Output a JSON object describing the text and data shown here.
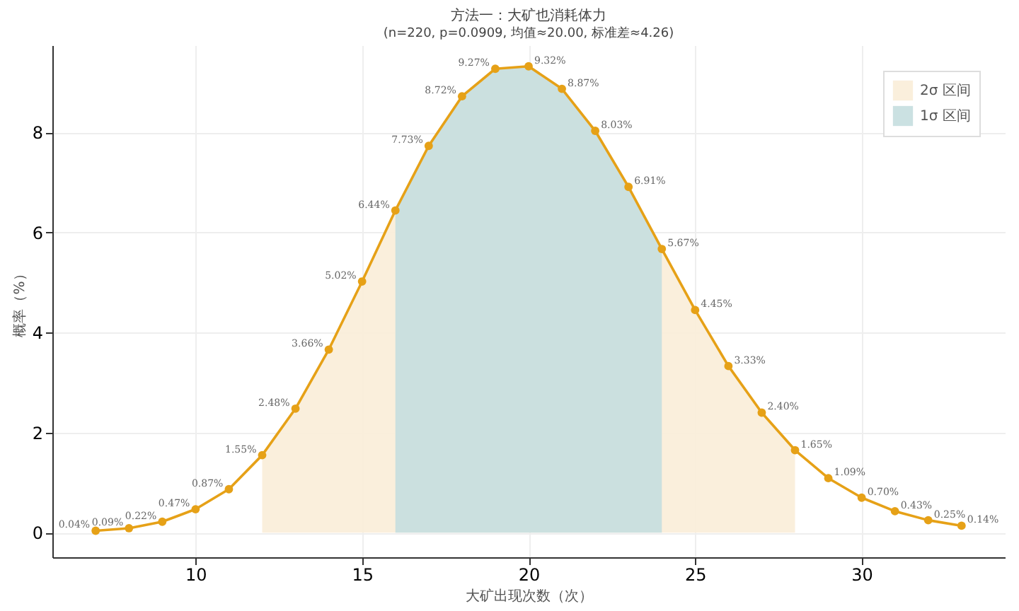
{
  "chart_data": {
    "type": "line",
    "title": "方法一：大矿也消耗体力",
    "subtitle": "(n=220, p=0.0909, 均值≈20.00, 标准差≈4.26)",
    "xlabel": "大矿出现次数（次）",
    "ylabel": "概率（%）",
    "series": [
      {
        "type": "area",
        "name": "2σ 区间",
        "color": "#f9edd8",
        "x": [
          12,
          13,
          14,
          15,
          16,
          17,
          18,
          19,
          20,
          21,
          22,
          23,
          24,
          25,
          26,
          27,
          28
        ],
        "values": [
          1.55,
          2.48,
          3.66,
          5.02,
          6.44,
          7.73,
          8.72,
          9.27,
          9.32,
          8.87,
          8.03,
          6.91,
          5.67,
          4.45,
          3.33,
          2.4,
          1.65
        ]
      },
      {
        "type": "area",
        "name": "1σ 区间",
        "color": "#c5dedf",
        "x": [
          16,
          17,
          18,
          19,
          20,
          21,
          22,
          23,
          24
        ],
        "values": [
          6.44,
          7.73,
          8.72,
          9.27,
          9.32,
          8.87,
          8.03,
          6.91,
          5.67
        ]
      },
      {
        "color": "#e6a117",
        "marker": "circle",
        "x": [
          7,
          8,
          9,
          10,
          11,
          12,
          13,
          14,
          15,
          16,
          17,
          18,
          19,
          20,
          21,
          22,
          23,
          24,
          25,
          26,
          27,
          28,
          29,
          30,
          31,
          32,
          33
        ],
        "values": [
          0.04,
          0.09,
          0.22,
          0.47,
          0.87,
          1.55,
          2.48,
          3.66,
          5.02,
          6.44,
          7.73,
          8.72,
          9.27,
          9.32,
          8.87,
          8.03,
          6.91,
          5.67,
          4.45,
          3.33,
          2.4,
          1.65,
          1.09,
          0.7,
          0.43,
          0.25,
          0.14
        ],
        "value_labels": [
          "0.04%",
          "0.09%",
          "0.22%",
          "0.47%",
          "0.87%",
          "1.55%",
          "2.48%",
          "3.66%",
          "5.02%",
          "6.44%",
          "7.73%",
          "8.72%",
          "9.27%",
          "9.32%",
          "8.87%",
          "8.03%",
          "6.91%",
          "5.67%",
          "4.45%",
          "3.33%",
          "2.40%",
          "1.65%",
          "1.09%",
          "0.70%",
          "0.43%",
          "0.25%",
          "0.14%"
        ]
      }
    ],
    "xlim": [
      5.7,
      34.3
    ],
    "xticks": [
      10,
      15,
      20,
      25,
      30
    ],
    "ylim": [
      -0.49,
      9.74
    ],
    "yticks": [
      0,
      2,
      4,
      6,
      8
    ],
    "grid": true,
    "legend": "top right",
    "line_style": "solid"
  }
}
